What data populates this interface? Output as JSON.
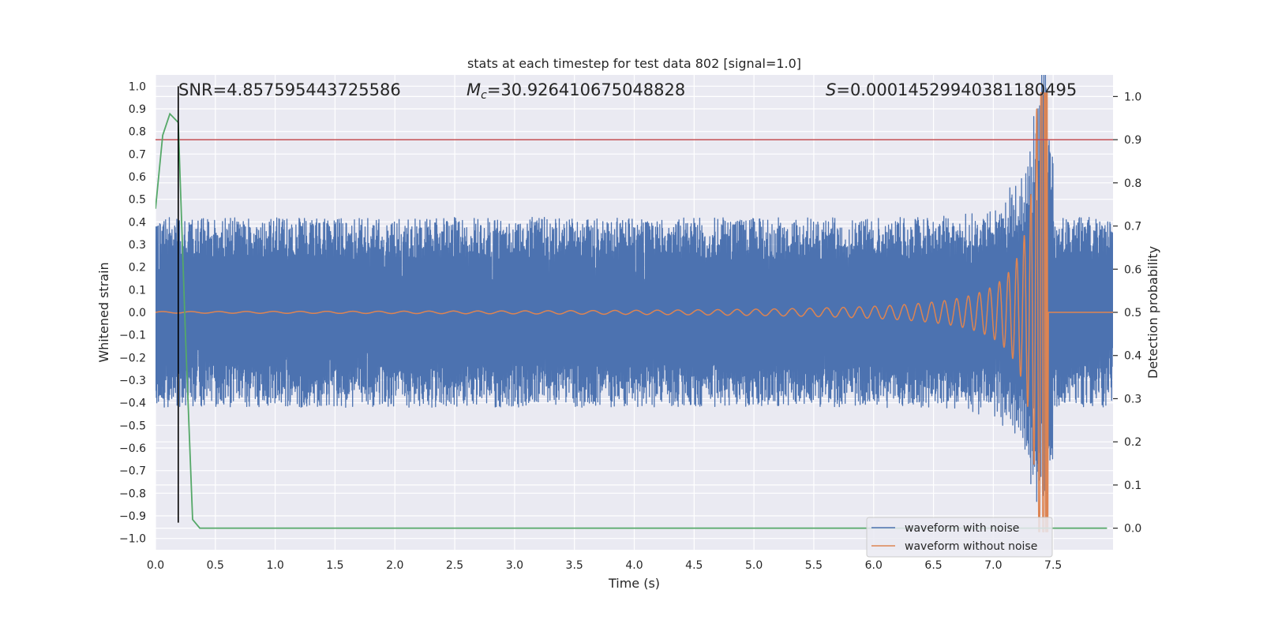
{
  "chart_data": {
    "type": "line",
    "title": "stats at each timestep for test data 802 [signal=1.0]",
    "xlabel": "Time (s)",
    "ylabel": "Whitened strain",
    "ylabel_right": "Detection probability",
    "xlim": [
      0.0,
      8.0
    ],
    "ylim": [
      -1.05,
      1.05
    ],
    "ylim_right": [
      -0.05,
      1.05
    ],
    "xticks": [
      "0.0",
      "0.5",
      "1.0",
      "1.5",
      "2.0",
      "2.5",
      "3.0",
      "3.5",
      "4.0",
      "4.5",
      "5.0",
      "5.5",
      "6.0",
      "6.5",
      "7.0",
      "7.5"
    ],
    "yticks": [
      "1.0",
      "0.9",
      "0.8",
      "0.7",
      "0.6",
      "0.5",
      "0.4",
      "0.3",
      "0.2",
      "0.1",
      "0.0",
      "−0.1",
      "−0.2",
      "−0.3",
      "−0.4",
      "−0.5",
      "−0.6",
      "−0.7",
      "−0.8",
      "−0.9",
      "−1.0"
    ],
    "yticks_right": [
      "1.0",
      "0.9",
      "0.8",
      "0.7",
      "0.6",
      "0.5",
      "0.4",
      "0.3",
      "0.2",
      "0.1",
      "0.0"
    ],
    "grid": true,
    "legend_position": "bottom-right",
    "annotations": {
      "snr": "SNR=4.857595443725586",
      "mc_symbol": "M",
      "mc_subscript": "c",
      "mc_value": "=30.926410675048828",
      "s_symbol": "S",
      "s_value": "=0.00014529940381180495"
    },
    "series": [
      {
        "name": "waveform with noise",
        "color": "#4c72b0",
        "axis": "left",
        "x_range": [
          0.0,
          8.0
        ],
        "typical_amplitude": 0.42,
        "peak_time": 7.42,
        "peak_value": 1.0,
        "min_value": -0.72
      },
      {
        "name": "waveform without noise",
        "color": "#dd8452",
        "axis": "left",
        "x_range": [
          0.0,
          7.45
        ],
        "merger_time": 7.45,
        "peak_value": 0.97,
        "min_value": -0.97
      },
      {
        "name": "",
        "color": "#55a868",
        "axis": "right",
        "x": [
          0.0,
          0.06,
          0.12,
          0.19,
          0.25,
          0.31,
          0.37,
          0.5,
          1.0,
          2.0,
          3.0,
          4.0,
          5.0,
          6.0,
          7.0,
          7.95
        ],
        "y": [
          0.74,
          0.91,
          0.96,
          0.94,
          0.45,
          0.02,
          0.0,
          0.0,
          0.0,
          0.0,
          0.0,
          0.0,
          0.0,
          0.0,
          0.0,
          0.0
        ]
      }
    ],
    "threshold_line": {
      "axis": "right",
      "value": 0.9,
      "color": "#c44e52"
    },
    "marker_line": {
      "x": 0.19,
      "y_range": [
        -0.93,
        1.0
      ],
      "color": "#000000"
    }
  }
}
